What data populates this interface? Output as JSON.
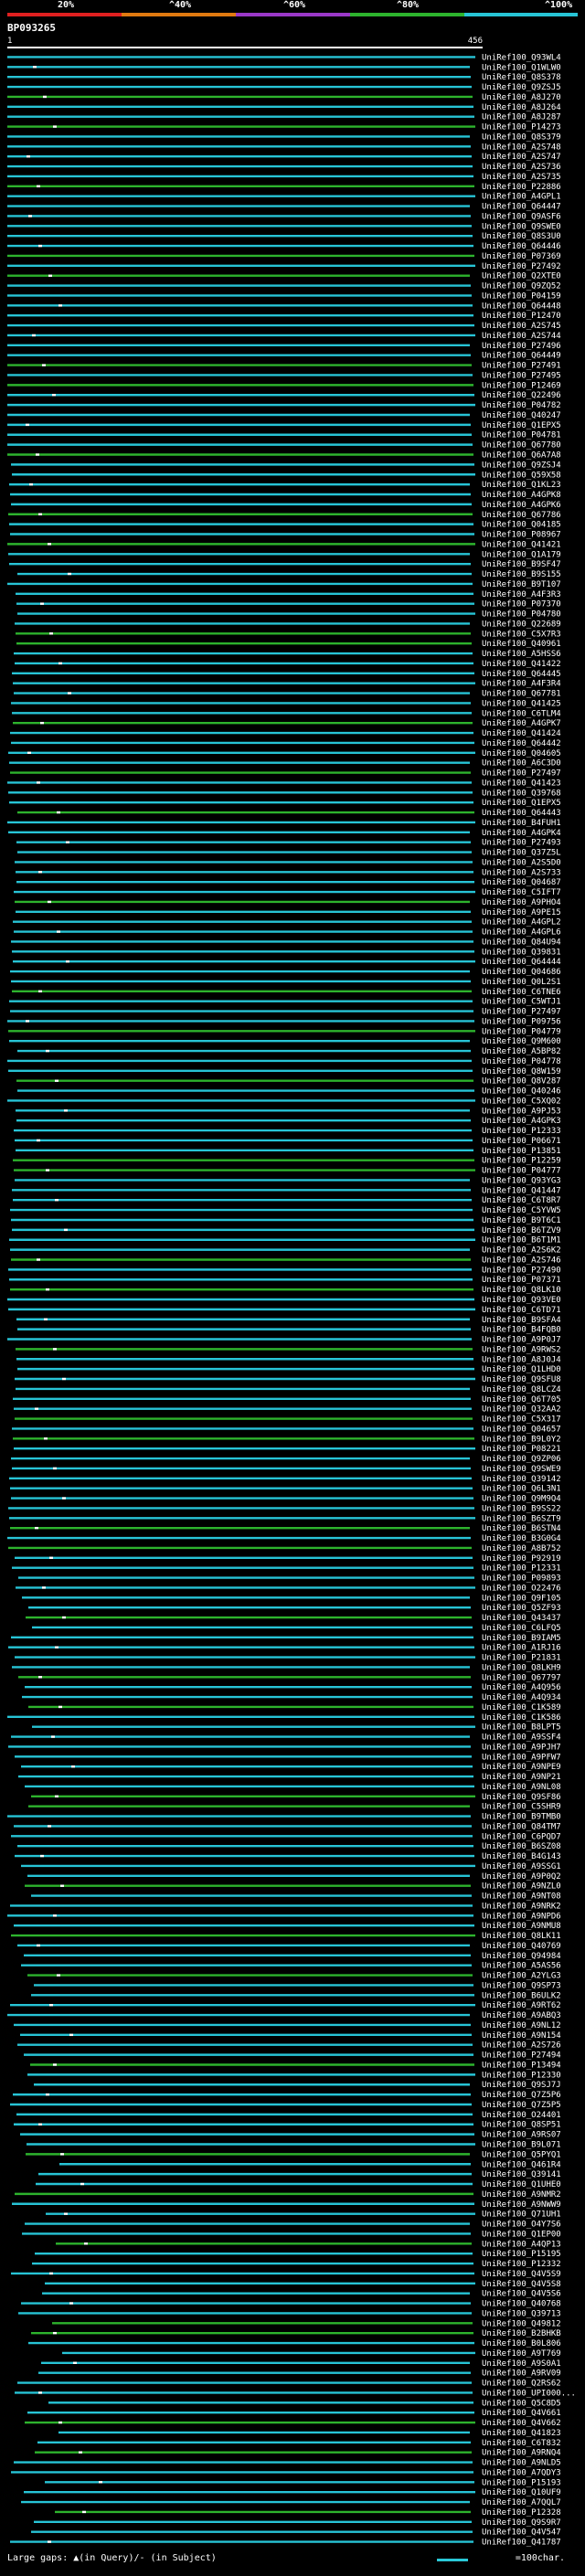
{
  "legend": {
    "ticks": [
      "20%",
      "^40%",
      "^60%",
      "^80%",
      "^100%"
    ],
    "colors": [
      "#e02020",
      "#e07a10",
      "#9a38c8",
      "#2db32d",
      "#27c4d6"
    ]
  },
  "query": {
    "id": "BP093265",
    "start": "1",
    "end": "456"
  },
  "hits": [
    "UniRef100_Q93WL4",
    "UniRef100_Q1WLW0",
    "UniRef100_Q8S378",
    "UniRef100_Q9ZSJ5",
    "UniRef100_A8J270",
    "UniRef100_A8J264",
    "UniRef100_A8J287",
    "UniRef100_P14273",
    "UniRef100_Q8S379",
    "UniRef100_A2S748",
    "UniRef100_A2S747",
    "UniRef100_A2S736",
    "UniRef100_A2S735",
    "UniRef100_P22886",
    "UniRef100_A4GPL1",
    "UniRef100_Q64447",
    "UniRef100_Q9ASF6",
    "UniRef100_Q9SWE0",
    "UniRef100_Q8S3U0",
    "UniRef100_Q64446",
    "UniRef100_P07369",
    "UniRef100_P27492",
    "UniRef100_Q2XTE0",
    "UniRef100_Q9ZQ52",
    "UniRef100_P04159",
    "UniRef100_Q64448",
    "UniRef100_P12470",
    "UniRef100_A2S745",
    "UniRef100_A2S744",
    "UniRef100_P27496",
    "UniRef100_Q64449",
    "UniRef100_P27491",
    "UniRef100_P27495",
    "UniRef100_P12469",
    "UniRef100_Q22496",
    "UniRef100_P04782",
    "UniRef100_Q40247",
    "UniRef100_Q1EPX5",
    "UniRef100_P04781",
    "UniRef100_Q67780",
    "UniRef100_Q6A7A8",
    "UniRef100_Q9ZSJ4",
    "UniRef100_Q59X58",
    "UniRef100_Q1KL23",
    "UniRef100_A4GPK8",
    "UniRef100_A4GPK6",
    "UniRef100_Q67786",
    "UniRef100_Q04185",
    "UniRef100_P08967",
    "UniRef100_Q41421",
    "UniRef100_Q1A179",
    "UniRef100_B9SF47",
    "UniRef100_B9S155",
    "UniRef100_B9T107",
    "UniRef100_A4F3R3",
    "UniRef100_P07370",
    "UniRef100_P04780",
    "UniRef100_Q22689",
    "UniRef100_C5X7R3",
    "UniRef100_Q40961",
    "UniRef100_A5HSS6",
    "UniRef100_Q41422",
    "UniRef100_Q64445",
    "UniRef100_A4F3R4",
    "UniRef100_Q67781",
    "UniRef100_Q41425",
    "UniRef100_C6TLM4",
    "UniRef100_A4GPK7",
    "UniRef100_Q41424",
    "UniRef100_Q64442",
    "UniRef100_Q04605",
    "UniRef100_A6C3D0",
    "UniRef100_P27497",
    "UniRef100_Q41423",
    "UniRef100_Q39768",
    "UniRef100_Q1EPX5",
    "UniRef100_Q64443",
    "UniRef100_B4FUH1",
    "UniRef100_A4GPK4",
    "UniRef100_P27493",
    "UniRef100_Q37Z5L",
    "UniRef100_A2S5D0",
    "UniRef100_A2S733",
    "UniRef100_Q04687",
    "UniRef100_C5IFT7",
    "UniRef100_A9PHO4",
    "UniRef100_A9PE15",
    "UniRef100_A4GPL2",
    "UniRef100_A4GPL6",
    "UniRef100_Q84U94",
    "UniRef100_Q39831",
    "UniRef100_Q64444",
    "UniRef100_Q04686",
    "UniRef100_Q0L2S1",
    "UniRef100_C6TNE6",
    "UniRef100_C5WTJ1",
    "UniRef100_P27497",
    "UniRef100_P09756",
    "UniRef100_P04779",
    "UniRef100_Q9M600",
    "UniRef100_A5BP82",
    "UniRef100_P04778",
    "UniRef100_Q8W159",
    "UniRef100_Q8V287",
    "UniRef100_Q40246",
    "UniRef100_C5XQ02",
    "UniRef100_A9PJ53",
    "UniRef100_A4GPK3",
    "UniRef100_P12333",
    "UniRef100_P06671",
    "UniRef100_P13851",
    "UniRef100_P12259",
    "UniRef100_P04777",
    "UniRef100_Q93YG3",
    "UniRef100_Q41447",
    "UniRef100_C6T8R7",
    "UniRef100_C5YVW5",
    "UniRef100_B9T6C1",
    "UniRef100_B6TZV9",
    "UniRef100_B6T1M1",
    "UniRef100_A2S6K2",
    "UniRef100_A2S746",
    "UniRef100_P27490",
    "UniRef100_P07371",
    "UniRef100_Q8LK10",
    "UniRef100_Q93VE0",
    "UniRef100_C6TD71",
    "UniRef100_B9SFA4",
    "UniRef100_B4FQB0",
    "UniRef100_A9P0J7",
    "UniRef100_A9RWS2",
    "UniRef100_A8J0J4",
    "UniRef100_Q1LHD0",
    "UniRef100_Q9SFU8",
    "UniRef100_Q8LCZ4",
    "UniRef100_Q6T705",
    "UniRef100_Q32AA2",
    "UniRef100_C5X317",
    "UniRef100_Q04657",
    "UniRef100_B9L0Y2",
    "UniRef100_P08221",
    "UniRef100_Q9ZP06",
    "UniRef100_Q9SWE9",
    "UniRef100_Q39142",
    "UniRef100_Q6L3N1",
    "UniRef100_Q9M9Q4",
    "UniRef100_B9SS22",
    "UniRef100_B6SZT9",
    "UniRef100_B6STN4",
    "UniRef100_B3G0G4",
    "UniRef100_A8B752",
    "UniRef100_P92919",
    "UniRef100_P12331",
    "UniRef100_P09893",
    "UniRef100_O22476",
    "UniRef100_Q9F105",
    "UniRef100_Q5ZF93",
    "UniRef100_Q43437",
    "UniRef100_C6LFQ5",
    "UniRef100_B9IAM5",
    "UniRef100_A1RJ16",
    "UniRef100_P21831",
    "UniRef100_Q8LKH9",
    "UniRef100_Q67797",
    "UniRef100_A4Q956",
    "UniRef100_A4Q934",
    "UniRef100_C1K589",
    "UniRef100_C1K586",
    "UniRef100_B8LPT5",
    "UniRef100_A9SSF4",
    "UniRef100_A9PJH7",
    "UniRef100_A9PFW7",
    "UniRef100_A9NPE9",
    "UniRef100_A9NP21",
    "UniRef100_A9NL08",
    "UniRef100_Q9SF86",
    "UniRef100_C5SHR9",
    "UniRef100_B9TMB0",
    "UniRef100_Q84TM7",
    "UniRef100_C6PQD7",
    "UniRef100_B6SZ08",
    "UniRef100_B4G143",
    "UniRef100_A9SSG1",
    "UniRef100_A9P0Q2",
    "UniRef100_A9NZL0",
    "UniRef100_A9NT08",
    "UniRef100_A9NRK2",
    "UniRef100_A9NPD6",
    "UniRef100_A9NMU8",
    "UniRef100_Q8LK11",
    "UniRef100_Q40769",
    "UniRef100_Q94984",
    "UniRef100_A5AS56",
    "UniRef100_A2YLG3",
    "UniRef100_Q9SP73",
    "UniRef100_B6ULK2",
    "UniRef100_A9RT62",
    "UniRef100_A9ABQ3",
    "UniRef100_A9NL12",
    "UniRef100_A9N154",
    "UniRef100_A2S726",
    "UniRef100_P27494",
    "UniRef100_P13494",
    "UniRef100_P12330",
    "UniRef100_Q9SJ7J",
    "UniRef100_Q7Z5P6",
    "UniRef100_Q7Z5P5",
    "UniRef100_O24401",
    "UniRef100_Q8SP51",
    "UniRef100_A9RS07",
    "UniRef100_B9L071",
    "UniRef100_Q5PYQ1",
    "UniRef100_Q461R4",
    "UniRef100_Q39141",
    "UniRef100_Q1UHE0",
    "UniRef100_A9NMR2",
    "UniRef100_A9NWW9",
    "UniRef100_Q71UH1",
    "UniRef100_O4Y7S6",
    "UniRef100_Q1EP00",
    "UniRef100_A4QP13",
    "UniRef100_P15195",
    "UniRef100_P12332",
    "UniRef100_Q4V5S9",
    "UniRef100_Q4V5S8",
    "UniRef100_Q4V5S6",
    "UniRef100_Q40768",
    "UniRef100_Q39713",
    "UniRef100_Q49812",
    "UniRef100_B2BHKB",
    "UniRef100_B0L806",
    "UniRef100_A9T769",
    "UniRef100_A9S0A1",
    "UniRef100_A9RV09",
    "UniRef100_Q2RS62",
    "UniRef100_UPI000...",
    "UniRef100_Q5C8D5",
    "UniRef100_Q4V661",
    "UniRef100_Q4V662",
    "UniRef100_Q41823",
    "UniRef100_C6T832",
    "UniRef100_A9RNQ4",
    "UniRef100_A9NLD5",
    "UniRef100_A7QDY3",
    "UniRef100_P15193",
    "UniRef100_Q10UF9",
    "UniRef100_A7QQL7",
    "UniRef100_P12328",
    "UniRef100_Q9S9R7",
    "UniRef100_Q4V547",
    "UniRef100_Q41787"
  ],
  "footer": {
    "note": "Large gaps: ▲(in Query)/- (in Subject)",
    "scale": "=100char."
  }
}
